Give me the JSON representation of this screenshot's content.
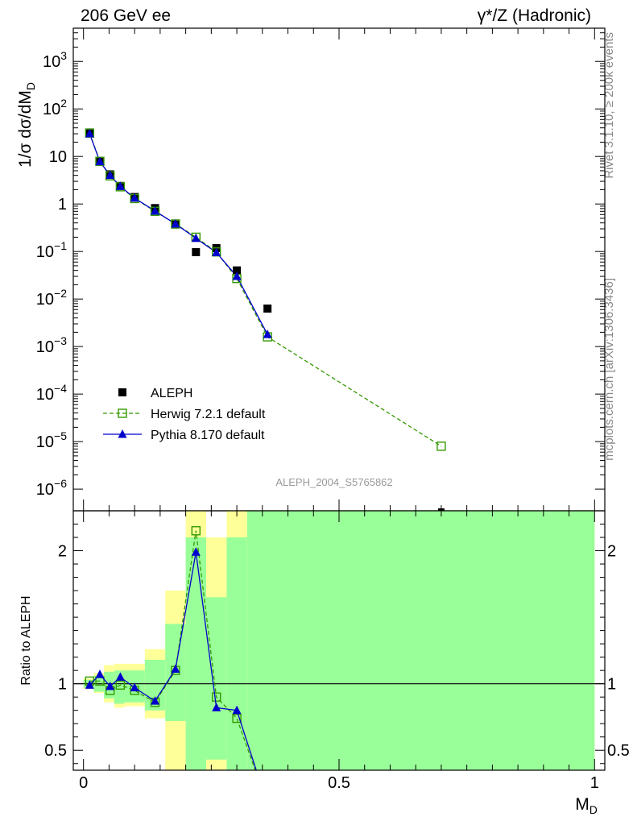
{
  "header": {
    "left_title": "206 GeV ee",
    "right_title": "γ*/Z (Hadronic)"
  },
  "side_labels": {
    "rivet": "Rivet 3.1.10, ≥ 200k events",
    "mcplots": "mcplots.cern.ch [arXiv:1306.3436]"
  },
  "watermark": "ALEPH_2004_S5765862",
  "colors": {
    "data": "#000000",
    "herwig": "#339900",
    "pythia": "#0000cc",
    "band_inner": "#99ff99",
    "band_outer": "#ffff99"
  },
  "chart_data": [
    {
      "type": "line",
      "panel": "main",
      "ylabel": "1/σ dσ/dM_D",
      "yscale": "log",
      "xlim": [
        -0.02,
        1.02
      ],
      "ylim": [
        3.5e-07,
        5000
      ],
      "y_ticks": [
        {
          "v": 1e-06,
          "label": "10",
          "exp": "−6"
        },
        {
          "v": 1e-05,
          "label": "10",
          "exp": "−5"
        },
        {
          "v": 0.0001,
          "label": "10",
          "exp": "−4"
        },
        {
          "v": 0.001,
          "label": "10",
          "exp": "−3"
        },
        {
          "v": 0.01,
          "label": "10",
          "exp": "−2"
        },
        {
          "v": 0.1,
          "label": "10",
          "exp": "−1"
        },
        {
          "v": 1,
          "label": "1",
          "exp": ""
        },
        {
          "v": 10,
          "label": "10",
          "exp": ""
        },
        {
          "v": 100,
          "label": "10",
          "exp": "2"
        },
        {
          "v": 1000,
          "label": "10",
          "exp": "3"
        }
      ],
      "legend": {
        "position": "bottom-left",
        "entries": [
          "ALEPH",
          "Herwig 7.2.1 default",
          "Pythia 8.170 default"
        ]
      },
      "series": [
        {
          "name": "ALEPH",
          "style": "square-filled",
          "x": [
            0.012,
            0.032,
            0.052,
            0.072,
            0.1,
            0.14,
            0.18,
            0.22,
            0.26,
            0.3,
            0.36,
            0.7
          ],
          "y": [
            32,
            8,
            4.2,
            2.4,
            1.4,
            0.82,
            0.37,
            0.097,
            0.118,
            0.04,
            0.0063,
            3.2e-07
          ]
        },
        {
          "name": "Herwig 7.2.1 default",
          "style": "square-open-dashed",
          "x": [
            0.012,
            0.032,
            0.052,
            0.072,
            0.1,
            0.14,
            0.18,
            0.22,
            0.26,
            0.3,
            0.36,
            0.7
          ],
          "y": [
            31,
            7.9,
            3.9,
            2.3,
            1.3,
            0.7,
            0.38,
            0.2,
            0.098,
            0.027,
            0.0016,
            8e-06
          ]
        },
        {
          "name": "Pythia 8.170 default",
          "style": "triangle-solid",
          "x": [
            0.012,
            0.032,
            0.052,
            0.072,
            0.1,
            0.14,
            0.18,
            0.22,
            0.26,
            0.3,
            0.36
          ],
          "y": [
            30,
            7.8,
            4.0,
            2.35,
            1.33,
            0.71,
            0.38,
            0.19,
            0.095,
            0.03,
            0.0018
          ]
        }
      ]
    },
    {
      "type": "line",
      "panel": "ratio",
      "xlabel": "M_D",
      "ylabel": "Ratio to ALEPH",
      "xlim": [
        -0.02,
        1.02
      ],
      "ylim": [
        0.35,
        2.3
      ],
      "x_ticks": [
        {
          "v": 0,
          "label": "0"
        },
        {
          "v": 0.5,
          "label": "0.5"
        },
        {
          "v": 1,
          "label": "1"
        }
      ],
      "y_ticks": [
        {
          "v": 0.5,
          "label": "0.5"
        },
        {
          "v": 1,
          "label": "1"
        },
        {
          "v": 2,
          "label": "2"
        }
      ],
      "bands": [
        {
          "x0": 0.0,
          "x1": 0.02,
          "inner": [
            0.97,
            1.03
          ],
          "outer": [
            0.96,
            1.04
          ]
        },
        {
          "x0": 0.02,
          "x1": 0.04,
          "inner": [
            0.94,
            1.06
          ],
          "outer": [
            0.93,
            1.08
          ]
        },
        {
          "x0": 0.04,
          "x1": 0.06,
          "inner": [
            0.89,
            1.09
          ],
          "outer": [
            0.86,
            1.14
          ]
        },
        {
          "x0": 0.06,
          "x1": 0.08,
          "inner": [
            0.85,
            1.1
          ],
          "outer": [
            0.82,
            1.15
          ]
        },
        {
          "x0": 0.08,
          "x1": 0.12,
          "inner": [
            0.86,
            1.1
          ],
          "outer": [
            0.83,
            1.15
          ]
        },
        {
          "x0": 0.12,
          "x1": 0.16,
          "inner": [
            0.8,
            1.18
          ],
          "outer": [
            0.74,
            1.26
          ]
        },
        {
          "x0": 0.16,
          "x1": 0.2,
          "inner": [
            0.72,
            1.45
          ],
          "outer": [
            0.35,
            1.7
          ]
        },
        {
          "x0": 0.2,
          "x1": 0.24,
          "inner": [
            0.35,
            2.1
          ],
          "outer": [
            0.35,
            2.3
          ]
        },
        {
          "x0": 0.24,
          "x1": 0.28,
          "inner": [
            0.43,
            1.65
          ],
          "outer": [
            0.35,
            2.1
          ]
        },
        {
          "x0": 0.28,
          "x1": 0.32,
          "inner": [
            0.35,
            2.1
          ],
          "outer": [
            0.35,
            2.3
          ]
        },
        {
          "x0": 0.32,
          "x1": 1.0,
          "inner": [
            0.35,
            2.3
          ],
          "outer": [
            0.35,
            2.3
          ]
        }
      ],
      "series": [
        {
          "name": "Herwig 7.2.1 default",
          "style": "square-open-dashed",
          "x": [
            0.012,
            0.032,
            0.052,
            0.072,
            0.1,
            0.14,
            0.18,
            0.22,
            0.26,
            0.3,
            0.336
          ],
          "y": [
            1.02,
            1.02,
            0.95,
            0.99,
            0.95,
            0.86,
            1.1,
            2.15,
            0.9,
            0.74,
            0.35
          ]
        },
        {
          "name": "Pythia 8.170 default",
          "style": "triangle-solid",
          "x": [
            0.012,
            0.032,
            0.052,
            0.072,
            0.1,
            0.14,
            0.18,
            0.22,
            0.26,
            0.3,
            0.338
          ],
          "y": [
            0.99,
            1.07,
            0.98,
            1.05,
            0.97,
            0.87,
            1.11,
            1.99,
            0.82,
            0.8,
            0.35
          ]
        }
      ]
    }
  ]
}
